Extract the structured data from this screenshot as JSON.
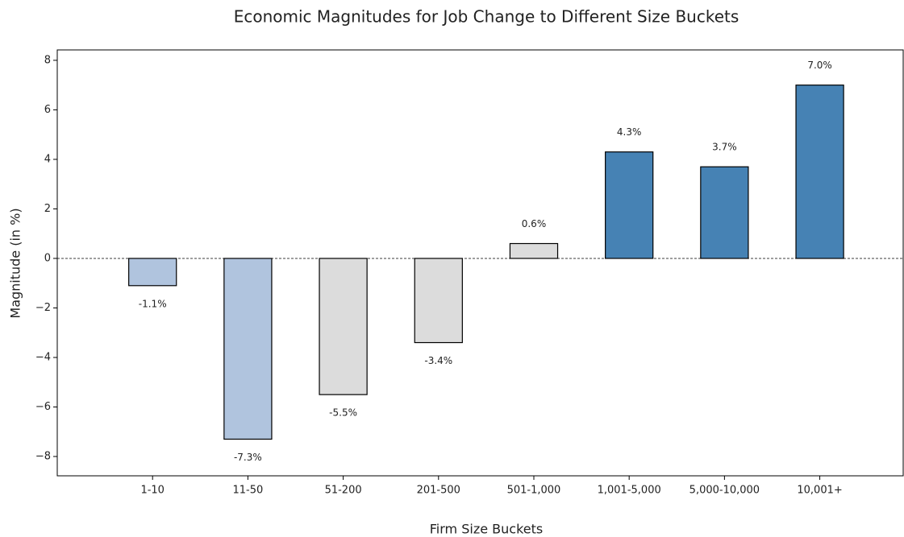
{
  "chart_data": {
    "type": "bar",
    "title": "Economic Magnitudes for Job Change to Different Size Buckets",
    "x_label": "Firm Size Buckets",
    "y_label": "Magnitude (in %)",
    "categories": [
      "1-10",
      "11-50",
      "51-200",
      "201-500",
      "501-1,000",
      "1,001-5,000",
      "5,000-10,000",
      "10,001+"
    ],
    "values": [
      -1.1,
      -7.3,
      -5.5,
      -3.4,
      0.6,
      4.3,
      3.7,
      7.0
    ],
    "value_labels": [
      "-1.1%",
      "-7.3%",
      "-5.5%",
      "-3.4%",
      "0.6%",
      "4.3%",
      "3.7%",
      "7.0%"
    ],
    "colors": [
      "#b0c4de",
      "#b0c4de",
      "#dcdcdc",
      "#dcdcdc",
      "#dcdcdc",
      "#4682b4",
      "#4682b4",
      "#4682b4"
    ],
    "ylim": [
      -8.78,
      8.42
    ],
    "yticks": [
      {
        "value": -8,
        "label": "−8"
      },
      {
        "value": -6,
        "label": "−6"
      },
      {
        "value": -4,
        "label": "−4"
      },
      {
        "value": -2,
        "label": "−2"
      },
      0,
      2,
      4,
      6,
      8
    ]
  }
}
